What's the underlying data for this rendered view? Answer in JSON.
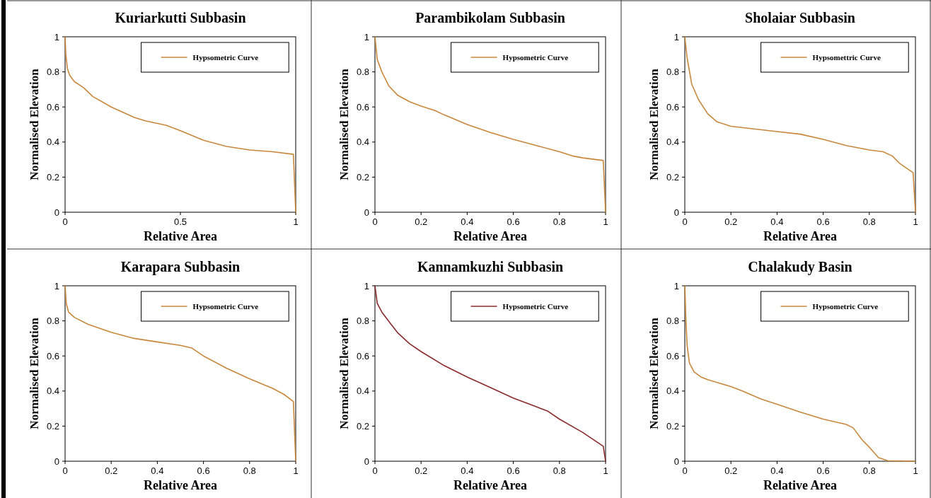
{
  "chart_data": [
    {
      "type": "line",
      "title": "Kuriarkutti Subbasin",
      "xlabel": "Relative Area",
      "ylabel": "Normalised Elevation",
      "xlim": [
        0,
        1
      ],
      "xticks": [
        0,
        0.5,
        1
      ],
      "ylim": [
        0,
        1
      ],
      "yticks": [
        0,
        0.2,
        0.4,
        0.6,
        0.8,
        1
      ],
      "legend": "top right",
      "series": [
        {
          "name": "Hypsometric Curve",
          "color": "#c8873a",
          "x": [
            0,
            0.003,
            0.01,
            0.02,
            0.04,
            0.08,
            0.12,
            0.2,
            0.3,
            0.35,
            0.44,
            0.5,
            0.6,
            0.7,
            0.8,
            0.9,
            0.99,
            1
          ],
          "values": [
            1,
            0.9,
            0.82,
            0.78,
            0.745,
            0.71,
            0.66,
            0.6,
            0.54,
            0.52,
            0.495,
            0.465,
            0.41,
            0.375,
            0.355,
            0.345,
            0.33,
            0
          ]
        }
      ]
    },
    {
      "type": "line",
      "title": "Parambikolam Subbasin",
      "xlabel": "Relative Area",
      "ylabel": "Normalised Elevation",
      "xlim": [
        0,
        1
      ],
      "xticks": [
        0,
        0.2,
        0.4,
        0.6,
        0.8,
        1
      ],
      "ylim": [
        0,
        1
      ],
      "yticks": [
        0,
        0.2,
        0.4,
        0.6,
        0.8,
        1
      ],
      "legend": "top right",
      "series": [
        {
          "name": "Hypsometric Curve",
          "color": "#c8873a",
          "x": [
            0,
            0.01,
            0.03,
            0.06,
            0.1,
            0.15,
            0.2,
            0.26,
            0.3,
            0.4,
            0.5,
            0.6,
            0.7,
            0.8,
            0.86,
            0.9,
            0.99,
            1
          ],
          "values": [
            1,
            0.87,
            0.8,
            0.72,
            0.665,
            0.63,
            0.605,
            0.58,
            0.555,
            0.5,
            0.455,
            0.415,
            0.38,
            0.345,
            0.32,
            0.31,
            0.295,
            0
          ]
        }
      ]
    },
    {
      "type": "line",
      "title": "Sholaiar Subbasin",
      "xlabel": "Relative Area",
      "ylabel": "Normalised Elevation",
      "xlim": [
        0,
        1
      ],
      "xticks": [
        0,
        0.2,
        0.4,
        0.6,
        0.8,
        1
      ],
      "ylim": [
        0,
        1
      ],
      "yticks": [
        0,
        0.2,
        0.4,
        0.6,
        0.8,
        1
      ],
      "legend": "top right",
      "series": [
        {
          "name": "Hypsomettric Curve",
          "color": "#c8873a",
          "x": [
            0,
            0.01,
            0.03,
            0.06,
            0.1,
            0.14,
            0.2,
            0.3,
            0.4,
            0.5,
            0.6,
            0.7,
            0.8,
            0.86,
            0.9,
            0.93,
            0.99,
            1
          ],
          "values": [
            1,
            0.88,
            0.73,
            0.64,
            0.56,
            0.515,
            0.49,
            0.475,
            0.46,
            0.445,
            0.415,
            0.38,
            0.355,
            0.345,
            0.32,
            0.28,
            0.225,
            0
          ]
        }
      ]
    },
    {
      "type": "line",
      "title": "Karapara Subbasin",
      "xlabel": "Relative Area",
      "ylabel": "Normalised Elevation",
      "xlim": [
        0,
        1
      ],
      "xticks": [
        0,
        0.2,
        0.4,
        0.6,
        0.8,
        1
      ],
      "ylim": [
        0,
        1
      ],
      "yticks": [
        0,
        0.2,
        0.4,
        0.6,
        0.8,
        1
      ],
      "legend": "top right",
      "series": [
        {
          "name": "Hypsometric Curve",
          "color": "#c8873a",
          "x": [
            0,
            0.005,
            0.015,
            0.04,
            0.1,
            0.2,
            0.3,
            0.4,
            0.5,
            0.55,
            0.6,
            0.7,
            0.8,
            0.9,
            0.95,
            0.99,
            1
          ],
          "values": [
            1,
            0.9,
            0.85,
            0.82,
            0.78,
            0.735,
            0.7,
            0.68,
            0.66,
            0.645,
            0.6,
            0.53,
            0.47,
            0.415,
            0.38,
            0.34,
            0
          ]
        }
      ]
    },
    {
      "type": "line",
      "title": "Kannamkuzhi Subbasin",
      "xlabel": "Relative Area",
      "ylabel": "Normalised Elevation",
      "xlim": [
        0,
        1
      ],
      "xticks": [
        0,
        0.2,
        0.4,
        0.6,
        0.8,
        1
      ],
      "ylim": [
        0,
        1
      ],
      "yticks": [
        0,
        0.2,
        0.4,
        0.6,
        0.8,
        1
      ],
      "legend": "top right",
      "series": [
        {
          "name": "Hypsometric Curve",
          "color": "#8b2a2a",
          "x": [
            0,
            0.01,
            0.03,
            0.07,
            0.1,
            0.15,
            0.2,
            0.3,
            0.4,
            0.5,
            0.6,
            0.7,
            0.75,
            0.8,
            0.9,
            0.99,
            1
          ],
          "values": [
            1,
            0.9,
            0.85,
            0.78,
            0.73,
            0.67,
            0.625,
            0.545,
            0.48,
            0.42,
            0.36,
            0.31,
            0.285,
            0.24,
            0.165,
            0.085,
            0
          ]
        }
      ]
    },
    {
      "type": "line",
      "title": "Chalakudy Basin",
      "xlabel": "Relative Area",
      "ylabel": "Normalised Elevation",
      "xlim": [
        0,
        1
      ],
      "xticks": [
        0,
        0.2,
        0.4,
        0.6,
        0.8,
        1
      ],
      "ylim": [
        0,
        1
      ],
      "yticks": [
        0,
        0.2,
        0.4,
        0.6,
        0.8,
        1
      ],
      "legend": "top right",
      "series": [
        {
          "name": "Hypsometric Curve",
          "color": "#c8873a",
          "x": [
            0,
            0.005,
            0.01,
            0.02,
            0.04,
            0.07,
            0.1,
            0.2,
            0.25,
            0.33,
            0.4,
            0.5,
            0.6,
            0.7,
            0.73,
            0.77,
            0.8,
            0.84,
            0.88,
            1
          ],
          "values": [
            1,
            0.8,
            0.66,
            0.56,
            0.51,
            0.48,
            0.465,
            0.425,
            0.4,
            0.355,
            0.325,
            0.28,
            0.24,
            0.21,
            0.19,
            0.12,
            0.08,
            0.02,
            0.003,
            0
          ]
        }
      ]
    }
  ]
}
